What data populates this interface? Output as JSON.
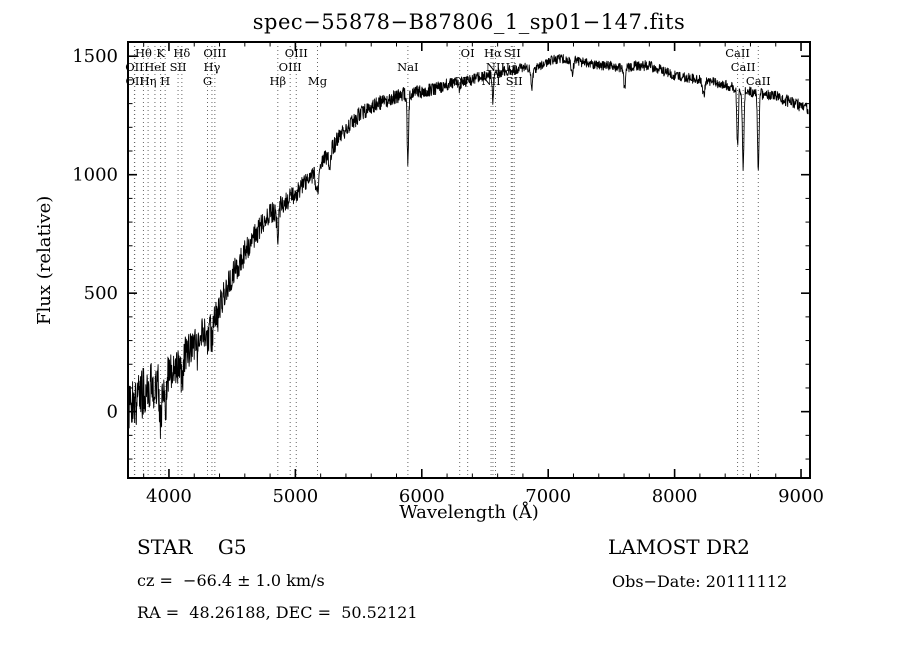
{
  "header": {
    "title": "spec−55878−B87806_1_sp01−147.fits"
  },
  "chart_data": {
    "type": "line",
    "title": "spec−55878−B87806_1_sp01−147.fits",
    "xlabel": "Wavelength (Å)",
    "ylabel": "Flux (relative)",
    "xlim": [
      3676,
      9071
    ],
    "ylim": [
      -280,
      1560
    ],
    "xticks": [
      4000,
      5000,
      6000,
      7000,
      8000,
      9000
    ],
    "x_minor_step": 200,
    "yticks": [
      0,
      500,
      1000,
      1500
    ],
    "y_minor_step": 100,
    "grid": false,
    "line_color": "#000000",
    "marker_line_color": "#666666",
    "series": [
      {
        "name": "spectrum",
        "sample_step": 2.5,
        "sample_range": [
          3682,
          9058
        ],
        "noise_seed": 20111112,
        "continuum": [
          [
            3682,
            30
          ],
          [
            3750,
            60
          ],
          [
            3800,
            80
          ],
          [
            3850,
            100
          ],
          [
            3900,
            120
          ],
          [
            3950,
            140
          ],
          [
            4000,
            160
          ],
          [
            4050,
            190
          ],
          [
            4100,
            220
          ],
          [
            4150,
            250
          ],
          [
            4200,
            280
          ],
          [
            4250,
            320
          ],
          [
            4300,
            350
          ],
          [
            4350,
            400
          ],
          [
            4400,
            450
          ],
          [
            4450,
            510
          ],
          [
            4500,
            570
          ],
          [
            4550,
            620
          ],
          [
            4600,
            670
          ],
          [
            4650,
            720
          ],
          [
            4700,
            760
          ],
          [
            4750,
            800
          ],
          [
            4800,
            830
          ],
          [
            4850,
            850
          ],
          [
            4900,
            880
          ],
          [
            4950,
            900
          ],
          [
            5000,
            920
          ],
          [
            5050,
            950
          ],
          [
            5100,
            980
          ],
          [
            5150,
            1000
          ],
          [
            5200,
            1040
          ],
          [
            5250,
            1080
          ],
          [
            5300,
            1120
          ],
          [
            5350,
            1160
          ],
          [
            5400,
            1190
          ],
          [
            5450,
            1220
          ],
          [
            5500,
            1250
          ],
          [
            5550,
            1270
          ],
          [
            5600,
            1290
          ],
          [
            5650,
            1300
          ],
          [
            5700,
            1310
          ],
          [
            5750,
            1320
          ],
          [
            5800,
            1330
          ],
          [
            5850,
            1340
          ],
          [
            5900,
            1340
          ],
          [
            5950,
            1350
          ],
          [
            6000,
            1350
          ],
          [
            6100,
            1360
          ],
          [
            6200,
            1380
          ],
          [
            6300,
            1390
          ],
          [
            6400,
            1400
          ],
          [
            6500,
            1420
          ],
          [
            6600,
            1430
          ],
          [
            6700,
            1440
          ],
          [
            6800,
            1450
          ],
          [
            6900,
            1450
          ],
          [
            7000,
            1480
          ],
          [
            7100,
            1490
          ],
          [
            7200,
            1485
          ],
          [
            7300,
            1470
          ],
          [
            7400,
            1460
          ],
          [
            7500,
            1460
          ],
          [
            7600,
            1450
          ],
          [
            7700,
            1460
          ],
          [
            7800,
            1460
          ],
          [
            7900,
            1440
          ],
          [
            8000,
            1420
          ],
          [
            8100,
            1410
          ],
          [
            8200,
            1400
          ],
          [
            8300,
            1390
          ],
          [
            8400,
            1380
          ],
          [
            8500,
            1360
          ],
          [
            8600,
            1350
          ],
          [
            8700,
            1340
          ],
          [
            8800,
            1330
          ],
          [
            8900,
            1310
          ],
          [
            9000,
            1290
          ],
          [
            9058,
            1280
          ]
        ],
        "absorption_features": [
          [
            3934,
            160,
            9
          ],
          [
            3970,
            140,
            9
          ],
          [
            4102,
            100,
            7
          ],
          [
            4227,
            60,
            6
          ],
          [
            4305,
            70,
            11
          ],
          [
            4340,
            90,
            7
          ],
          [
            4383,
            60,
            6
          ],
          [
            4861,
            110,
            7
          ],
          [
            5175,
            90,
            11
          ],
          [
            5270,
            50,
            9
          ],
          [
            5890,
            290,
            6
          ],
          [
            6300,
            40,
            5
          ],
          [
            6563,
            110,
            6
          ],
          [
            6870,
            90,
            7
          ],
          [
            7190,
            60,
            9
          ],
          [
            7605,
            100,
            6
          ],
          [
            8230,
            60,
            9
          ],
          [
            8498,
            230,
            6
          ],
          [
            8542,
            330,
            6
          ],
          [
            8662,
            340,
            6
          ]
        ],
        "noise_amplitude": [
          [
            3682,
            120
          ],
          [
            3800,
            110
          ],
          [
            3900,
            100
          ],
          [
            4000,
            88
          ],
          [
            4200,
            72
          ],
          [
            4400,
            62
          ],
          [
            4600,
            52
          ],
          [
            4800,
            46
          ],
          [
            5000,
            42
          ],
          [
            5200,
            38
          ],
          [
            5400,
            35
          ],
          [
            5600,
            32
          ],
          [
            5800,
            30
          ],
          [
            6000,
            28
          ],
          [
            6300,
            25
          ],
          [
            6600,
            22
          ],
          [
            7000,
            20
          ],
          [
            7400,
            20
          ],
          [
            7800,
            22
          ],
          [
            8200,
            20
          ],
          [
            8600,
            22
          ],
          [
            9058,
            26
          ]
        ]
      }
    ],
    "line_markers": [
      {
        "label": "Hθ",
        "wavelength": 3798,
        "row": 0
      },
      {
        "label": "K",
        "wavelength": 3934,
        "row": 0
      },
      {
        "label": "Hδ",
        "wavelength": 4102,
        "row": 0
      },
      {
        "label": "OIII",
        "wavelength": 4363,
        "row": 0
      },
      {
        "label": "OIII",
        "wavelength": 5007,
        "row": 0
      },
      {
        "label": "OI",
        "wavelength": 6363,
        "row": 0
      },
      {
        "label": "Hα",
        "wavelength": 6563,
        "row": 0
      },
      {
        "label": "SII",
        "wavelength": 6716,
        "row": 0
      },
      {
        "label": "CaII",
        "wavelength": 8498,
        "row": 0
      },
      {
        "label": "OII",
        "wavelength": 3727,
        "row": 1
      },
      {
        "label": "HeI",
        "wavelength": 3889,
        "row": 1
      },
      {
        "label": "SII",
        "wavelength": 4072,
        "row": 1
      },
      {
        "label": "Hγ",
        "wavelength": 4340,
        "row": 1
      },
      {
        "label": "OIII",
        "wavelength": 4959,
        "row": 1
      },
      {
        "label": "NaI",
        "wavelength": 5890,
        "row": 1
      },
      {
        "label": "NII",
        "wavelength": 6583,
        "row": 1
      },
      {
        "label": "Li",
        "wavelength": 6708,
        "row": 1
      },
      {
        "label": "CaII",
        "wavelength": 8542,
        "row": 1
      },
      {
        "label": "OII",
        "wavelength": 3729,
        "row": 2
      },
      {
        "label": "Hη",
        "wavelength": 3835,
        "row": 2
      },
      {
        "label": "H",
        "wavelength": 3970,
        "row": 2
      },
      {
        "label": "G",
        "wavelength": 4305,
        "row": 2
      },
      {
        "label": "Hβ",
        "wavelength": 4861,
        "row": 2
      },
      {
        "label": "Mg",
        "wavelength": 5175,
        "row": 2
      },
      {
        "label": "OI",
        "wavelength": 6300,
        "row": 2
      },
      {
        "label": "NII",
        "wavelength": 6548,
        "row": 2
      },
      {
        "label": "SII",
        "wavelength": 6731,
        "row": 2
      },
      {
        "label": "CaII",
        "wavelength": 8662,
        "row": 2
      }
    ]
  },
  "footer": {
    "classification": "STAR    G5",
    "survey": "LAMOST DR2",
    "cz": "cz =  −66.4 ± 1.0 km/s",
    "obs_date": "Obs−Date: 20111112",
    "coords": "RA =  48.26188, DEC =  50.52121"
  }
}
